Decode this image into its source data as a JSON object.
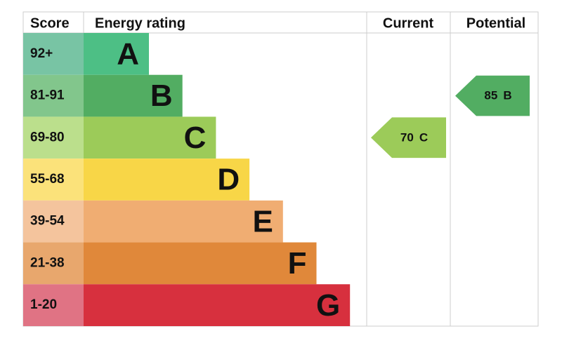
{
  "chart_data": {
    "type": "epc",
    "headers": {
      "score": "Score",
      "rating": "Energy rating",
      "current": "Current",
      "potential": "Potential"
    },
    "bands": [
      {
        "range": "92+",
        "letter": "A",
        "color": "#4dbf85",
        "score_color": "#78c4a4"
      },
      {
        "range": "81-91",
        "letter": "B",
        "color": "#52ad62",
        "score_color": "#82c68c"
      },
      {
        "range": "69-80",
        "letter": "C",
        "color": "#9ccb59",
        "score_color": "#bbdf8c"
      },
      {
        "range": "55-68",
        "letter": "D",
        "color": "#f8d647",
        "score_color": "#fbe27a"
      },
      {
        "range": "39-54",
        "letter": "E",
        "color": "#f0ad72",
        "score_color": "#f4c49d"
      },
      {
        "range": "21-38",
        "letter": "F",
        "color": "#e0883a",
        "score_color": "#e8a76d"
      },
      {
        "range": "1-20",
        "letter": "G",
        "color": "#d7303e",
        "score_color": "#e07384"
      }
    ],
    "current": {
      "value": 70,
      "letter": "C",
      "color": "#9ccb59"
    },
    "potential": {
      "value": 85,
      "letter": "B",
      "color": "#52ad62"
    }
  }
}
